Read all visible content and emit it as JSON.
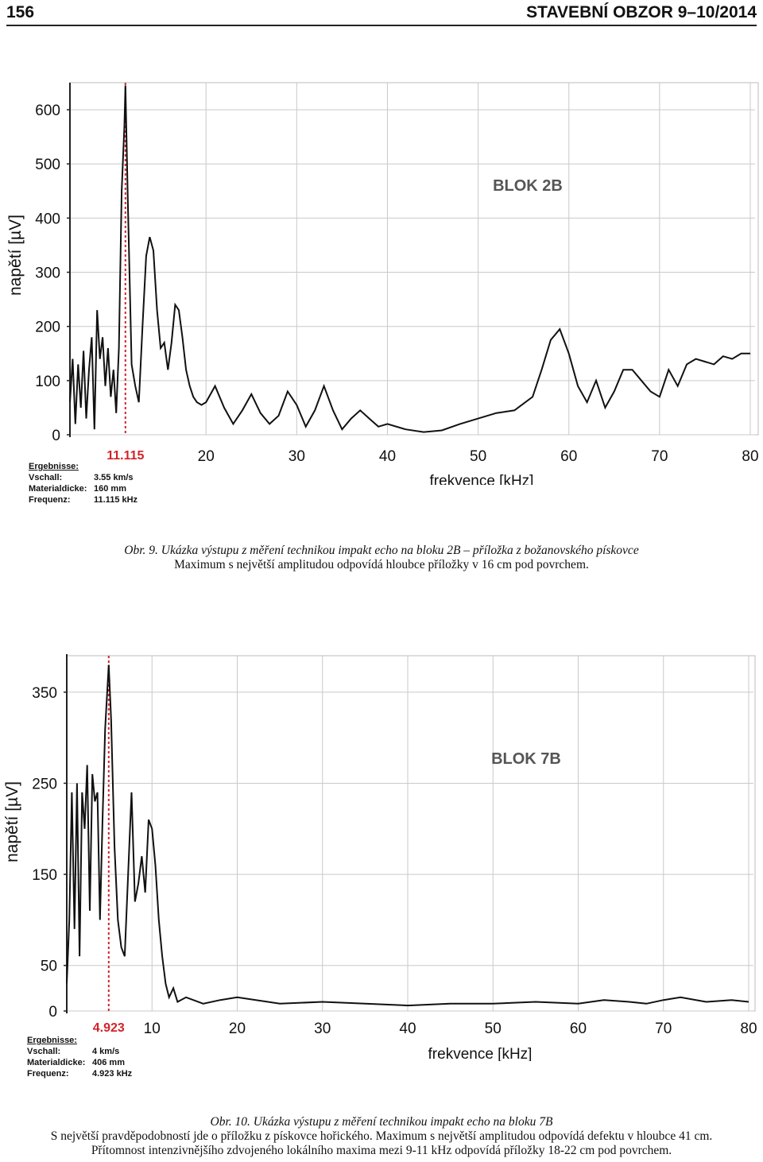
{
  "header": {
    "page_number": "156",
    "journal": "STAVEBNÍ OBZOR 9–10/2014"
  },
  "chart_data": [
    {
      "type": "line",
      "title": "BLOK 2B",
      "xlabel": "frekvence [kHz]",
      "ylabel": "napětí [µV]",
      "xlim": [
        5,
        80
      ],
      "ylim": [
        0,
        650
      ],
      "x_ticks": [
        "20",
        "30",
        "40",
        "50",
        "60",
        "70",
        "80"
      ],
      "y_ticks": [
        "0",
        "100",
        "200",
        "300",
        "400",
        "500",
        "600"
      ],
      "peak_marker": {
        "x": 11.115,
        "label": "11.115"
      },
      "x": [
        5.0,
        5.3,
        5.6,
        5.9,
        6.2,
        6.5,
        6.8,
        7.1,
        7.4,
        7.7,
        8.0,
        8.3,
        8.6,
        8.9,
        9.2,
        9.5,
        9.8,
        10.1,
        10.4,
        10.7,
        11.0,
        11.115,
        11.4,
        11.8,
        12.2,
        12.6,
        13.0,
        13.4,
        13.8,
        14.2,
        14.6,
        15.0,
        15.4,
        15.8,
        16.2,
        16.6,
        17.0,
        17.4,
        17.8,
        18.2,
        18.6,
        19.0,
        19.5,
        20.0,
        21.0,
        22.0,
        23.0,
        24.0,
        25.0,
        26.0,
        27.0,
        28.0,
        29.0,
        30.0,
        31.0,
        32.0,
        33.0,
        34.0,
        35.0,
        36.0,
        37.0,
        38.0,
        39.0,
        40.0,
        42.0,
        44.0,
        46.0,
        48.0,
        50.0,
        52.0,
        54.0,
        56.0,
        57.0,
        58.0,
        59.0,
        60.0,
        61.0,
        62.0,
        63.0,
        64.0,
        65.0,
        66.0,
        67.0,
        68.0,
        69.0,
        70.0,
        71.0,
        72.0,
        73.0,
        74.0,
        75.0,
        76.0,
        77.0,
        78.0,
        79.0,
        80.0
      ],
      "y": [
        60,
        140,
        20,
        130,
        50,
        155,
        30,
        120,
        180,
        10,
        230,
        140,
        180,
        90,
        160,
        70,
        120,
        40,
        160,
        450,
        570,
        645,
        420,
        130,
        90,
        60,
        200,
        330,
        365,
        340,
        230,
        160,
        170,
        120,
        170,
        240,
        230,
        180,
        120,
        90,
        70,
        60,
        55,
        60,
        90,
        50,
        20,
        45,
        75,
        40,
        20,
        35,
        80,
        55,
        15,
        45,
        90,
        45,
        10,
        30,
        45,
        30,
        15,
        20,
        10,
        5,
        8,
        20,
        30,
        40,
        45,
        70,
        120,
        175,
        195,
        150,
        90,
        60,
        100,
        50,
        80,
        120,
        120,
        100,
        80,
        70,
        120,
        90,
        130,
        140,
        135,
        130,
        145,
        140,
        150,
        150
      ]
    },
    {
      "type": "line",
      "title": "BLOK 7B",
      "xlabel": "frekvence [kHz]",
      "ylabel": "napětí [µV]",
      "xlim": [
        0,
        80
      ],
      "ylim": [
        0,
        390
      ],
      "x_ticks": [
        "10",
        "20",
        "30",
        "40",
        "50",
        "60",
        "70",
        "80"
      ],
      "y_ticks": [
        "0",
        "50",
        "150",
        "250",
        "350"
      ],
      "peak_marker": {
        "x": 4.923,
        "label": "4.923"
      },
      "x": [
        0.0,
        0.3,
        0.6,
        0.9,
        1.2,
        1.5,
        1.8,
        2.1,
        2.4,
        2.7,
        3.0,
        3.3,
        3.6,
        3.9,
        4.2,
        4.5,
        4.923,
        5.2,
        5.6,
        6.0,
        6.4,
        6.8,
        7.2,
        7.6,
        8.0,
        8.4,
        8.8,
        9.2,
        9.6,
        10.0,
        10.4,
        10.8,
        11.2,
        11.6,
        12.0,
        12.5,
        13.0,
        14.0,
        16.0,
        18.0,
        20.0,
        25.0,
        30.0,
        35.0,
        40.0,
        45.0,
        50.0,
        55.0,
        60.0,
        63.0,
        66.0,
        68.0,
        70.0,
        72.0,
        75.0,
        78.0,
        80.0
      ],
      "y": [
        30,
        100,
        240,
        90,
        250,
        60,
        240,
        200,
        270,
        110,
        260,
        230,
        240,
        100,
        210,
        310,
        380,
        320,
        180,
        100,
        70,
        60,
        150,
        240,
        120,
        140,
        170,
        130,
        210,
        200,
        160,
        100,
        60,
        30,
        15,
        25,
        10,
        15,
        8,
        12,
        15,
        8,
        10,
        8,
        6,
        8,
        8,
        10,
        8,
        12,
        10,
        8,
        12,
        15,
        10,
        12,
        10
      ]
    }
  ],
  "results": [
    {
      "title": "Ergebnisse:",
      "rows": [
        {
          "key": "Vschall:",
          "value": "3.55 km/s"
        },
        {
          "key": "Materialdicke:",
          "value": "160 mm"
        },
        {
          "key": "Frequenz:",
          "value": "11.115 kHz"
        }
      ]
    },
    {
      "title": "Ergebnisse:",
      "rows": [
        {
          "key": "Vschall:",
          "value": "4 km/s"
        },
        {
          "key": "Materialdicke:",
          "value": "406 mm"
        },
        {
          "key": "Frequenz:",
          "value": "4.923 kHz"
        }
      ]
    }
  ],
  "captions": {
    "fig9_line1": "Obr. 9. Ukázka výstupu z měření technikou impakt echo na bloku 2B – příložka z božanovského pískovce",
    "fig9_line2": "Maximum s největší amplitudou odpovídá hloubce příložky v 16 cm pod povrchem.",
    "fig10_line1": "Obr. 10. Ukázka výstupu z měření technikou impakt echo na bloku 7B",
    "fig10_line2": "S největší pravděpodobností jde o příložku z pískovce hořického. Maximum s největší amplitudou odpovídá defektu v hloubce 41 cm.",
    "fig10_line3": "Přítomnost intenzivnějšího zdvojeného lokálního maxima mezi 9-11 kHz odpovídá příložky 18-22 cm pod povrchem."
  }
}
